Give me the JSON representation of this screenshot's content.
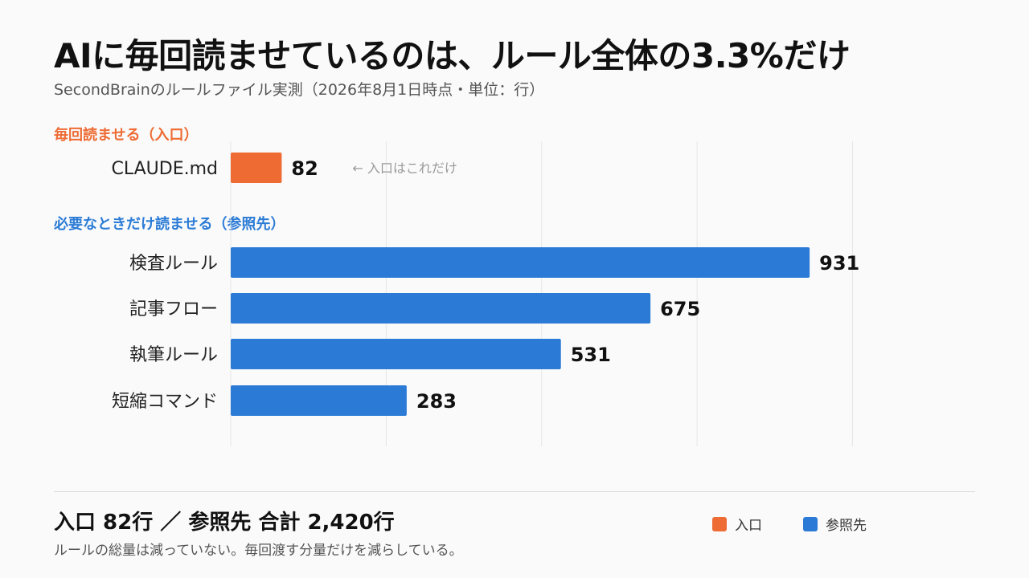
{
  "title": "AIに毎回読ませているのは、ルール全体の3.3%だけ",
  "subtitle": "SecondBrainのルールファイル実測（2026年8月1日時点・単位：行）",
  "sections": {
    "entry_label": "毎回読ませる（入口）",
    "reference_label": "必要なときだけ読ませる（参照先）"
  },
  "colors": {
    "entry": "#ee6b33",
    "reference": "#2b7bd6",
    "grid": "#e6e6e6",
    "annotation": "#999999"
  },
  "chart_data": {
    "type": "bar",
    "orientation": "horizontal",
    "unit": "行",
    "xlim": [
      0,
      1000
    ],
    "grid": true,
    "groups": [
      {
        "name": "入口",
        "color": "#ee6b33",
        "categories": [
          "CLAUDE.md"
        ],
        "values": [
          82
        ],
        "annotation": "← 入口はこれだけ"
      },
      {
        "name": "参照先",
        "color": "#2b7bd6",
        "categories": [
          "検査ルール",
          "記事フロー",
          "執筆ルール",
          "短縮コマンド"
        ],
        "values": [
          931,
          675,
          531,
          283
        ]
      }
    ],
    "legend": {
      "position": "bottom-right",
      "entries": [
        {
          "label": "入口",
          "color": "#ee6b33"
        },
        {
          "label": "参照先",
          "color": "#2b7bd6"
        }
      ]
    }
  },
  "footer": {
    "summary": "入口 82行 ／ 参照先 合計 2,420行",
    "note": "ルールの総量は減っていない。毎回渡す分量だけを減らしている。"
  }
}
